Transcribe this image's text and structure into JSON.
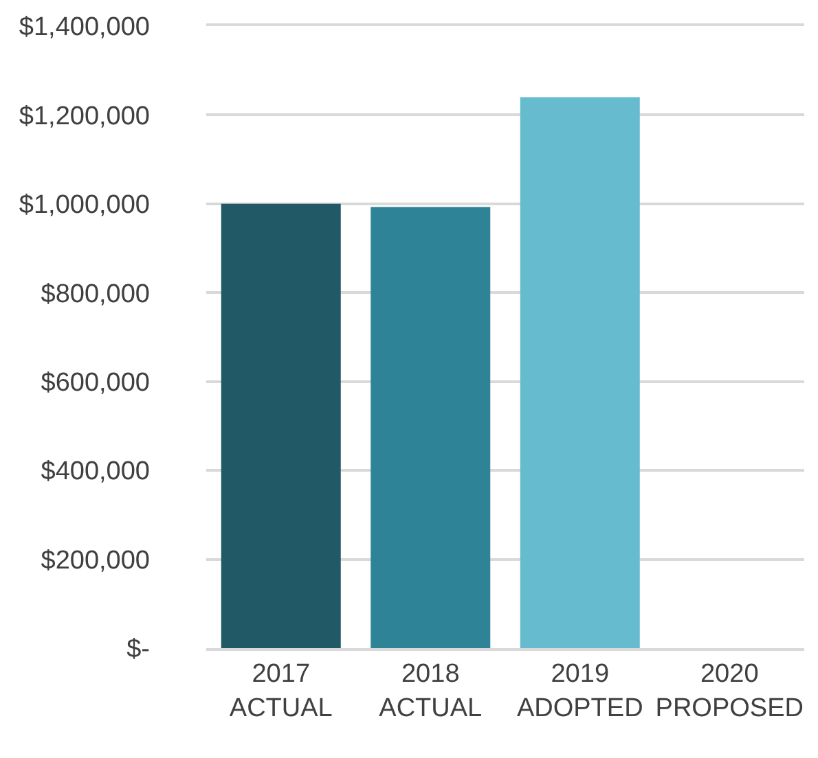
{
  "chart_data": {
    "type": "bar",
    "categories": [
      "2017\nACTUAL",
      "2018\nACTUAL",
      "2019\nADOPTED",
      "2020\nPROPOSED"
    ],
    "values": [
      1000000,
      993000,
      1240000,
      null
    ],
    "colors": [
      "#215a66",
      "#2e8496",
      "#67bbcf",
      "#67bbcf"
    ],
    "ylim": [
      0,
      1400000
    ],
    "yticks": [
      {
        "value": 0,
        "label": "$-"
      },
      {
        "value": 200000,
        "label": "$200,000"
      },
      {
        "value": 400000,
        "label": "$400,000"
      },
      {
        "value": 600000,
        "label": "$600,000"
      },
      {
        "value": 800000,
        "label": "$800,000"
      },
      {
        "value": 1000000,
        "label": "$1,000,000"
      },
      {
        "value": 1200000,
        "label": "$1,200,000"
      },
      {
        "value": 1400000,
        "label": "$1,400,000"
      }
    ],
    "grid": "y"
  }
}
